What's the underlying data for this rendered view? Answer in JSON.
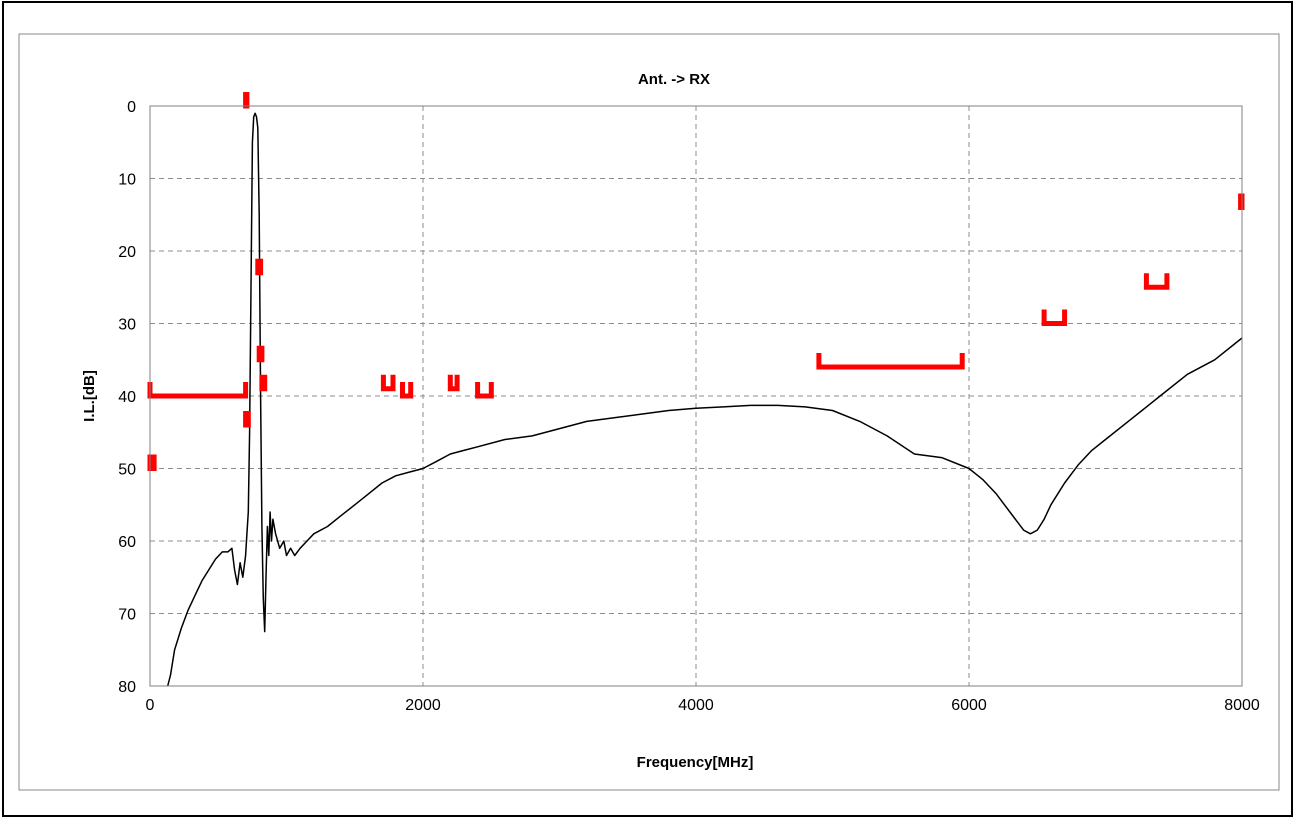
{
  "chart_data": {
    "type": "line",
    "title": "Ant. -> RX",
    "xlabel": "Frequency[MHz]",
    "ylabel": "I.L.[dB]",
    "xlim": [
      0,
      8000
    ],
    "ylim": [
      0,
      80
    ],
    "y_inverted": true,
    "grid": true,
    "grid_style": "dashed",
    "x_ticks": [
      "0",
      "2000",
      "4000",
      "6000",
      "8000"
    ],
    "y_ticks": [
      "0",
      "10",
      "20",
      "30",
      "40",
      "50",
      "60",
      "70",
      "80"
    ],
    "colors": {
      "curve": "#000000",
      "limits": "#ff0000"
    },
    "series": [
      {
        "points": [
          [
            130,
            80
          ],
          [
            150,
            78.5
          ],
          [
            180,
            75
          ],
          [
            230,
            72
          ],
          [
            280,
            69.5
          ],
          [
            330,
            67.5
          ],
          [
            380,
            65.5
          ],
          [
            430,
            64
          ],
          [
            480,
            62.5
          ],
          [
            530,
            61.5
          ],
          [
            570,
            61.5
          ],
          [
            600,
            61
          ],
          [
            620,
            64
          ],
          [
            640,
            66
          ],
          [
            660,
            63
          ],
          [
            680,
            65
          ],
          [
            700,
            62
          ],
          [
            710,
            59
          ],
          [
            720,
            56
          ],
          [
            730,
            45
          ],
          [
            740,
            25
          ],
          [
            750,
            5
          ],
          [
            760,
            1.5
          ],
          [
            770,
            1
          ],
          [
            780,
            1.5
          ],
          [
            790,
            3
          ],
          [
            800,
            15
          ],
          [
            810,
            40
          ],
          [
            820,
            58
          ],
          [
            830,
            68
          ],
          [
            840,
            72.5
          ],
          [
            850,
            65
          ],
          [
            860,
            58
          ],
          [
            870,
            62
          ],
          [
            880,
            56
          ],
          [
            890,
            60
          ],
          [
            900,
            57
          ],
          [
            920,
            59
          ],
          [
            950,
            61
          ],
          [
            980,
            60
          ],
          [
            1000,
            62
          ],
          [
            1030,
            61
          ],
          [
            1060,
            62
          ],
          [
            1100,
            61
          ],
          [
            1150,
            60
          ],
          [
            1200,
            59
          ],
          [
            1300,
            58
          ],
          [
            1400,
            56.5
          ],
          [
            1500,
            55
          ],
          [
            1600,
            53.5
          ],
          [
            1700,
            52
          ],
          [
            1800,
            51
          ],
          [
            1900,
            50.5
          ],
          [
            2000,
            50
          ],
          [
            2100,
            49
          ],
          [
            2200,
            48
          ],
          [
            2300,
            47.5
          ],
          [
            2400,
            47
          ],
          [
            2600,
            46
          ],
          [
            2800,
            45.5
          ],
          [
            3000,
            44.5
          ],
          [
            3200,
            43.5
          ],
          [
            3400,
            43
          ],
          [
            3600,
            42.5
          ],
          [
            3800,
            42
          ],
          [
            4000,
            41.7
          ],
          [
            4200,
            41.5
          ],
          [
            4400,
            41.3
          ],
          [
            4600,
            41.3
          ],
          [
            4800,
            41.5
          ],
          [
            5000,
            42
          ],
          [
            5200,
            43.5
          ],
          [
            5400,
            45.5
          ],
          [
            5600,
            48
          ],
          [
            5800,
            48.5
          ],
          [
            6000,
            50
          ],
          [
            6100,
            51.5
          ],
          [
            6200,
            53.5
          ],
          [
            6300,
            56
          ],
          [
            6400,
            58.5
          ],
          [
            6450,
            59
          ],
          [
            6500,
            58.5
          ],
          [
            6550,
            57
          ],
          [
            6600,
            55
          ],
          [
            6700,
            52
          ],
          [
            6800,
            49.5
          ],
          [
            6900,
            47.5
          ],
          [
            7000,
            46
          ],
          [
            7200,
            43
          ],
          [
            7400,
            40
          ],
          [
            7600,
            37
          ],
          [
            7800,
            35
          ],
          [
            8000,
            32
          ]
        ]
      }
    ],
    "limit_marks": [
      {
        "x0": 0,
        "x1": 700,
        "y": 40
      },
      {
        "x0": 0,
        "x1": 30,
        "y": 50
      },
      {
        "x0": 700,
        "x1": 710,
        "y": 0
      },
      {
        "x0": 700,
        "x1": 720,
        "y": 44
      },
      {
        "x0": 790,
        "x1": 810,
        "y": 23
      },
      {
        "x0": 800,
        "x1": 820,
        "y": 35
      },
      {
        "x0": 820,
        "x1": 840,
        "y": 39
      },
      {
        "x0": 1710,
        "x1": 1780,
        "y": 39
      },
      {
        "x0": 1850,
        "x1": 1910,
        "y": 40
      },
      {
        "x0": 2200,
        "x1": 2250,
        "y": 39
      },
      {
        "x0": 2400,
        "x1": 2500,
        "y": 40
      },
      {
        "x0": 4900,
        "x1": 5950,
        "y": 36
      },
      {
        "x0": 6550,
        "x1": 6700,
        "y": 30
      },
      {
        "x0": 7300,
        "x1": 7450,
        "y": 25
      },
      {
        "x0": 7990,
        "x1": 8000,
        "y": 14
      }
    ]
  }
}
